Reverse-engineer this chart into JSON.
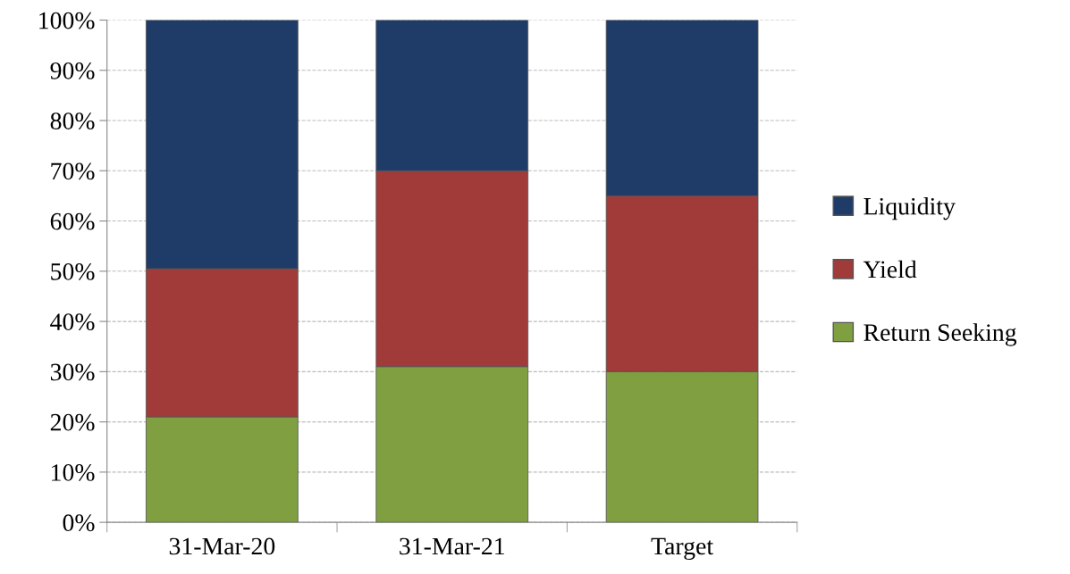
{
  "chart_data": {
    "type": "bar",
    "stacked": true,
    "categories": [
      "31-Mar-20",
      "31-Mar-21",
      "Target"
    ],
    "series": [
      {
        "name": "Return Seeking",
        "color": "#7f9f41",
        "values": [
          21,
          31,
          30
        ]
      },
      {
        "name": "Yield",
        "color": "#a03b39",
        "values": [
          29.5,
          39,
          35
        ]
      },
      {
        "name": "Liquidity",
        "color": "#1f3c68",
        "values": [
          49.5,
          30,
          35
        ]
      }
    ],
    "ylim": [
      0,
      100
    ],
    "yticks": [
      {
        "value": 0,
        "label": "0%"
      },
      {
        "value": 10,
        "label": "10%"
      },
      {
        "value": 20,
        "label": "20%"
      },
      {
        "value": 30,
        "label": "30%"
      },
      {
        "value": 40,
        "label": "40%"
      },
      {
        "value": 50,
        "label": "50%"
      },
      {
        "value": 60,
        "label": "60%"
      },
      {
        "value": 70,
        "label": "70%"
      },
      {
        "value": 80,
        "label": "80%"
      },
      {
        "value": 90,
        "label": "90%"
      },
      {
        "value": 100,
        "label": "100%"
      }
    ],
    "grid": "y",
    "legend": "right"
  }
}
